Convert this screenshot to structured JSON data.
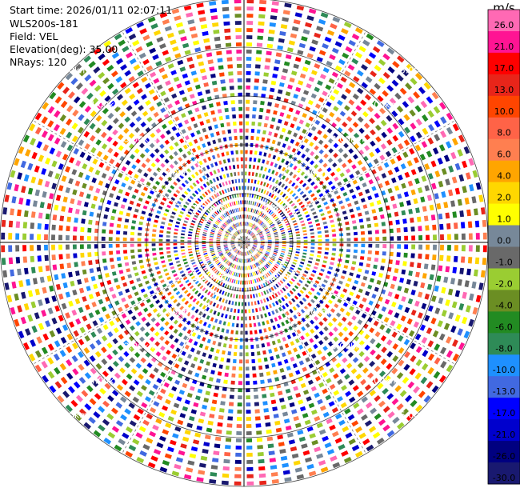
{
  "info": {
    "start_time": "Start time: 2026/01/11 02:07:11",
    "instrument": "WLS200s-181",
    "field": "Field: VEL",
    "elevation": "Elevation(deg): 35.00",
    "nrays": "NRays: 120"
  },
  "chart_data": {
    "type": "heatmap",
    "projection": "polar",
    "rays": 120,
    "ring_labels": [
      "1.00km",
      "2.00km",
      "3.00km",
      "4.00km",
      "5.00km"
    ],
    "ring_label_angles_deg": [
      45,
      135,
      225,
      315
    ],
    "colorbar": {
      "unit": "m/s",
      "ticks": [
        "26.0",
        "21.0",
        "17.0",
        "13.0",
        "10.0",
        "8.0",
        "6.0",
        "4.0",
        "2.0",
        "1.0",
        "0.0",
        "-1.0",
        "-2.0",
        "-4.0",
        "-6.0",
        "-8.0",
        "-10.0",
        "-13.0",
        "-17.0",
        "-21.0",
        "-26.0",
        "-30.0"
      ],
      "colors": [
        "#ff69b4",
        "#ff1493",
        "#ff0000",
        "#e8251a",
        "#ff4500",
        "#ff6347",
        "#ff7f50",
        "#ffa500",
        "#ffd700",
        "#ffff00",
        "#778899",
        "#696969",
        "#9acd32",
        "#6b8e23",
        "#228b22",
        "#2e8b57",
        "#1e90ff",
        "#4169e1",
        "#0000ff",
        "#0000cd",
        "#000080",
        "#191970"
      ]
    }
  }
}
